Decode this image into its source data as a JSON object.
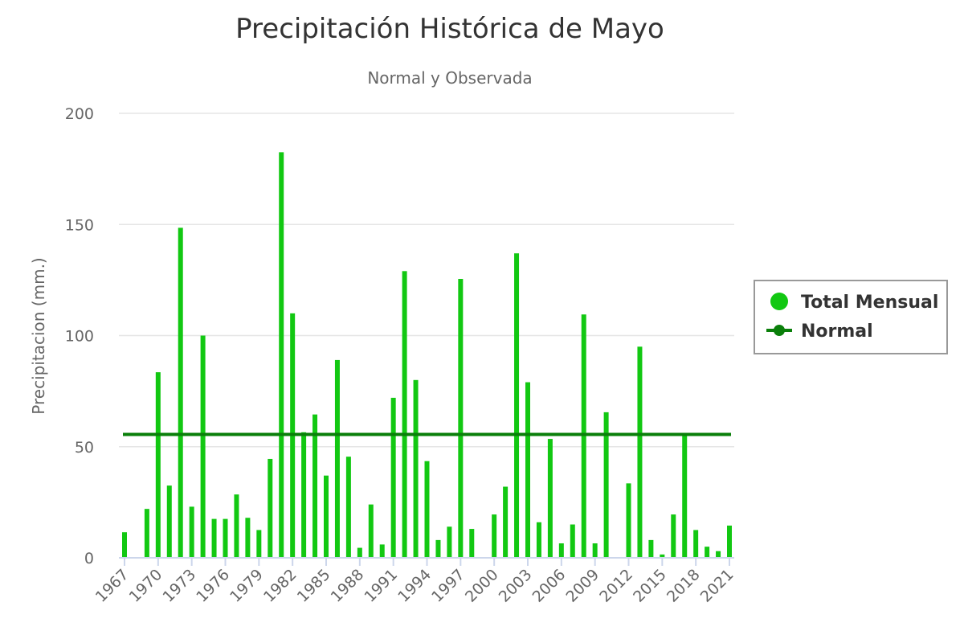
{
  "chart_data": {
    "type": "bar",
    "title": "Precipitación Histórica de Mayo",
    "subtitle": "Normal y Observada",
    "xlabel": "",
    "ylabel": "Precipitacion (mm.)",
    "ylim": [
      0,
      200
    ],
    "yticks": [
      "0",
      "50",
      "100",
      "150",
      "200"
    ],
    "grid": true,
    "legend_position": "right",
    "x": [
      1967,
      1968,
      1969,
      1970,
      1971,
      1972,
      1973,
      1974,
      1975,
      1976,
      1977,
      1978,
      1979,
      1980,
      1981,
      1982,
      1983,
      1984,
      1985,
      1986,
      1987,
      1988,
      1989,
      1990,
      1991,
      1992,
      1993,
      1994,
      1995,
      1996,
      1997,
      1998,
      1999,
      2000,
      2001,
      2002,
      2003,
      2004,
      2005,
      2006,
      2007,
      2008,
      2009,
      2010,
      2011,
      2012,
      2013,
      2014,
      2015,
      2016,
      2017,
      2018,
      2019,
      2020,
      2021
    ],
    "xticks": [
      "1967",
      "1970",
      "1973",
      "1976",
      "1979",
      "1982",
      "1985",
      "1988",
      "1991",
      "1994",
      "1997",
      "2000",
      "2003",
      "2006",
      "2009",
      "2012",
      "2015",
      "2018",
      "2021"
    ],
    "series": [
      {
        "name": "Total Mensual",
        "type": "bar",
        "color": "#12c812",
        "values": [
          11.5,
          0,
          22,
          83.5,
          32.5,
          148.5,
          23,
          100,
          17.5,
          17.5,
          28.5,
          18,
          12.5,
          44.5,
          182.5,
          110,
          56.5,
          64.5,
          37,
          89,
          45.5,
          4.5,
          24,
          6,
          72,
          129,
          80,
          43.5,
          8,
          14,
          125.5,
          13,
          0,
          19.5,
          32,
          137,
          79,
          16,
          53.5,
          6.5,
          15,
          109.5,
          6.5,
          65.5,
          0,
          33.5,
          95,
          8,
          1.5,
          19.5,
          55.5,
          12.5,
          5,
          3,
          14.5
        ]
      },
      {
        "name": "Normal",
        "type": "line",
        "color": "#0a7f0a",
        "value": 55.5
      }
    ]
  }
}
